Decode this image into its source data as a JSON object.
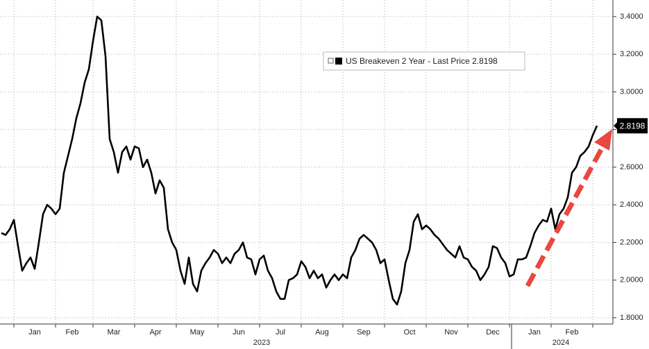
{
  "chart_data": {
    "type": "line",
    "legend": "US Breakeven 2 Year - Last Price 2.8198",
    "year_labels": [
      "2023",
      "2024"
    ],
    "categories": [
      null,
      null,
      null,
      null,
      null,
      null,
      null,
      null,
      "Jan",
      null,
      null,
      null,
      null,
      null,
      null,
      null,
      null,
      "Feb",
      null,
      null,
      null,
      null,
      null,
      null,
      null,
      null,
      null,
      "Mar",
      null,
      null,
      null,
      null,
      null,
      null,
      null,
      null,
      null,
      "Apr",
      null,
      null,
      null,
      null,
      null,
      null,
      null,
      null,
      null,
      "May",
      null,
      null,
      null,
      null,
      null,
      null,
      null,
      null,
      null,
      "Jun",
      null,
      null,
      null,
      null,
      null,
      null,
      null,
      null,
      null,
      "Jul",
      null,
      null,
      null,
      null,
      null,
      null,
      null,
      null,
      null,
      "Aug",
      null,
      null,
      null,
      null,
      null,
      null,
      null,
      null,
      null,
      "Sep",
      null,
      null,
      null,
      null,
      null,
      null,
      null,
      null,
      null,
      null,
      "Oct",
      null,
      null,
      null,
      null,
      null,
      null,
      null,
      null,
      null,
      "Nov",
      null,
      null,
      null,
      null,
      null,
      null,
      null,
      null,
      null,
      "Dec",
      null,
      null,
      null,
      null,
      null,
      null,
      null,
      null,
      null,
      "Jan",
      null,
      null,
      null,
      null,
      null,
      null,
      null,
      null,
      "Feb",
      null,
      null,
      null,
      null,
      null,
      null
    ],
    "series": [
      {
        "name": "US Breakeven 2 Year - Last Price 2.8198",
        "color": "#000000",
        "values": [
          2.25,
          2.24,
          2.27,
          2.32,
          2.18,
          2.05,
          2.09,
          2.12,
          2.06,
          2.2,
          2.35,
          2.4,
          2.38,
          2.35,
          2.38,
          2.57,
          2.66,
          2.75,
          2.86,
          2.94,
          3.05,
          3.12,
          3.27,
          3.4,
          3.38,
          3.19,
          2.75,
          2.68,
          2.57,
          2.68,
          2.71,
          2.64,
          2.71,
          2.7,
          2.6,
          2.64,
          2.57,
          2.46,
          2.53,
          2.49,
          2.27,
          2.2,
          2.16,
          2.05,
          1.98,
          2.12,
          1.98,
          1.94,
          2.05,
          2.09,
          2.12,
          2.16,
          2.14,
          2.09,
          2.12,
          2.09,
          2.14,
          2.16,
          2.2,
          2.12,
          2.11,
          2.03,
          2.11,
          2.13,
          2.05,
          2.01,
          1.94,
          1.9,
          1.9,
          2.0,
          2.01,
          2.03,
          2.1,
          2.07,
          2.01,
          2.05,
          2.01,
          2.03,
          1.96,
          2.0,
          2.03,
          2.0,
          2.03,
          2.01,
          2.12,
          2.16,
          2.22,
          2.24,
          2.22,
          2.2,
          2.16,
          2.09,
          2.11,
          2.0,
          1.9,
          1.87,
          1.94,
          2.09,
          2.16,
          2.31,
          2.35,
          2.27,
          2.29,
          2.27,
          2.24,
          2.22,
          2.19,
          2.16,
          2.14,
          2.12,
          2.18,
          2.12,
          2.11,
          2.07,
          2.05,
          2.0,
          2.03,
          2.07,
          2.18,
          2.17,
          2.12,
          2.09,
          2.02,
          2.03,
          2.11,
          2.11,
          2.12,
          2.18,
          2.25,
          2.29,
          2.32,
          2.31,
          2.38,
          2.27,
          2.35,
          2.38,
          2.44,
          2.57,
          2.6,
          2.66,
          2.68,
          2.71,
          2.77,
          2.8198
        ]
      }
    ],
    "ylim": [
      1.774,
      3.488
    ],
    "yticks": [
      {
        "value": 1.8,
        "label": "1.8000"
      },
      {
        "value": 2.0,
        "label": "2.0000"
      },
      {
        "value": 2.2,
        "label": "2.2000"
      },
      {
        "value": 2.4,
        "label": "2.4000"
      },
      {
        "value": 2.6,
        "label": "2.6000"
      },
      {
        "value": 2.8,
        "label": "2.8000"
      },
      {
        "value": 3.0,
        "label": "3.0000"
      },
      {
        "value": 3.2,
        "label": "3.2000"
      },
      {
        "value": 3.4,
        "label": "3.4000"
      }
    ],
    "grid": true
  }
}
